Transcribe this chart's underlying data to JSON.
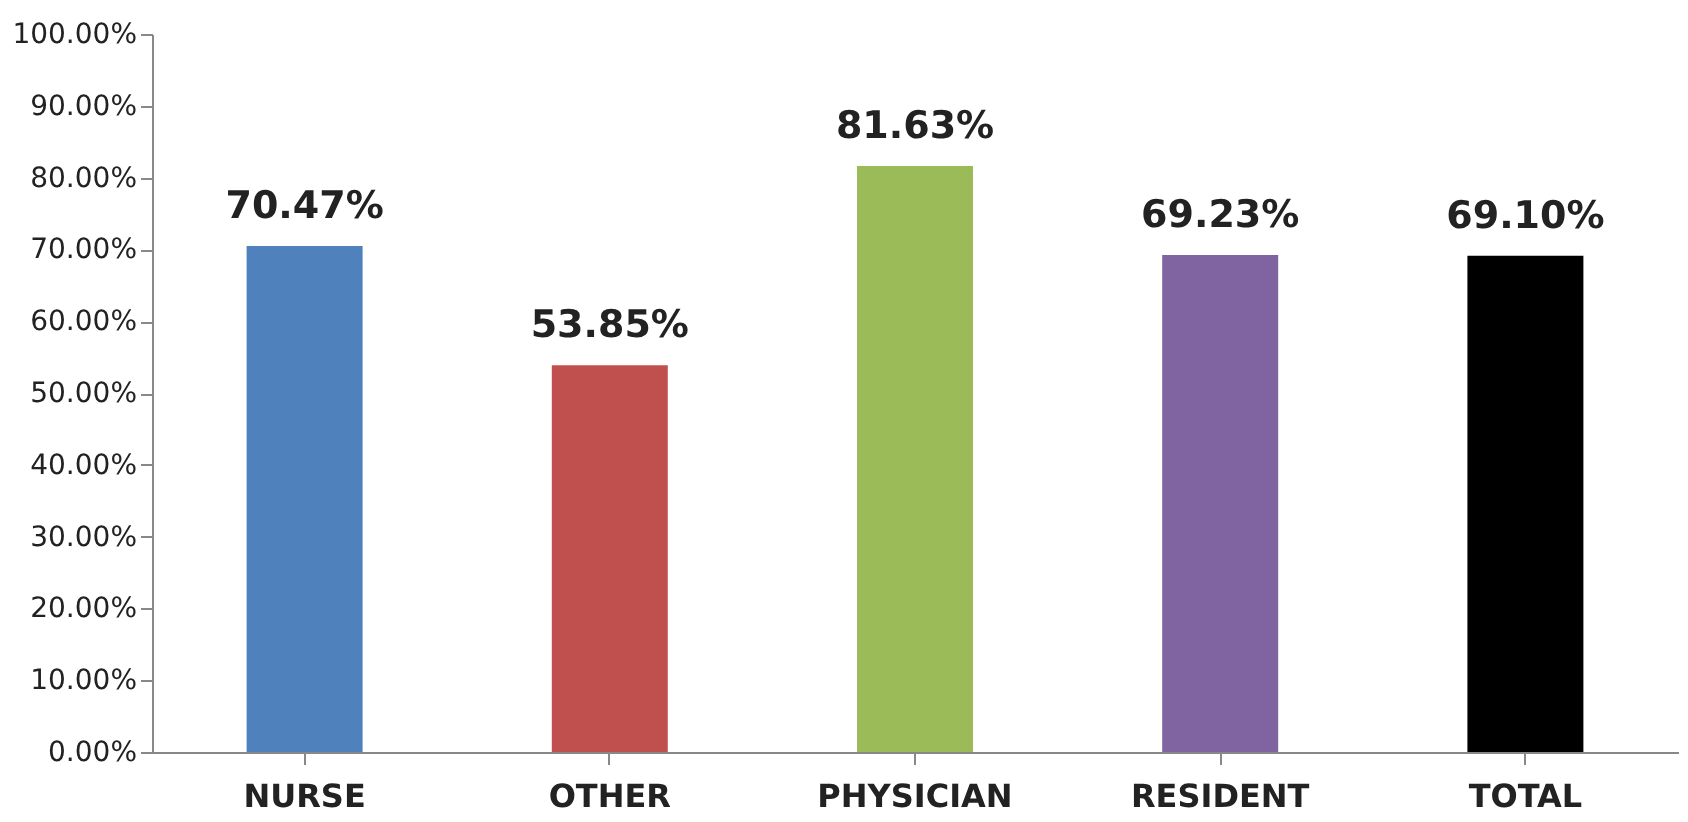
{
  "chart_data": {
    "type": "bar",
    "categories": [
      "NURSE",
      "OTHER",
      "PHYSICIAN",
      "RESIDENT",
      "TOTAL"
    ],
    "values": [
      70.47,
      53.85,
      81.63,
      69.23,
      69.1
    ],
    "colors": [
      "#4f81bd",
      "#c0504d",
      "#9bbb59",
      "#8064a2",
      "#000000"
    ],
    "value_labels": [
      "70.47%",
      "53.85%",
      "81.63%",
      "69.23%",
      "69.10%"
    ],
    "ylim": [
      0,
      100
    ],
    "yticks": [
      {
        "value": 0,
        "label": "0.00%"
      },
      {
        "value": 10,
        "label": "10.00%"
      },
      {
        "value": 20,
        "label": "20.00%"
      },
      {
        "value": 30,
        "label": "30.00%"
      },
      {
        "value": 40,
        "label": "40.00%"
      },
      {
        "value": 50,
        "label": "50.00%"
      },
      {
        "value": 60,
        "label": "60.00%"
      },
      {
        "value": 70,
        "label": "70.00%"
      },
      {
        "value": 80,
        "label": "80.00%"
      },
      {
        "value": 90,
        "label": "90.00%"
      },
      {
        "value": 100,
        "label": "100.00%"
      }
    ],
    "grid": false
  }
}
